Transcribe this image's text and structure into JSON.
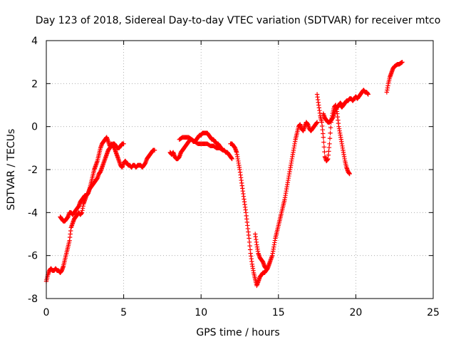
{
  "chart_data": {
    "type": "scatter",
    "title": "Day 123 of 2018, Sidereal Day-to-day VTEC variation (SDTVAR) for receiver mtco",
    "xlabel": "GPS time / hours",
    "ylabel": "SDTVAR / TECUs",
    "xlim": [
      0,
      25
    ],
    "ylim": [
      -8,
      4
    ],
    "xticks": [
      "0",
      "5",
      "10",
      "15",
      "20",
      "25"
    ],
    "yticks": [
      "-8",
      "-6",
      "-4",
      "-2",
      "0",
      "2",
      "4"
    ],
    "grid": true,
    "marker": "+",
    "series": [
      {
        "color": "#ff0000",
        "x": [
          0.0,
          0.1,
          0.2,
          0.3,
          0.4,
          0.5,
          0.6,
          0.7,
          0.8,
          0.9,
          1.0,
          1.1,
          1.2,
          1.3,
          1.4,
          1.5,
          1.6,
          1.7,
          1.8,
          1.9,
          2.0,
          2.1,
          2.2,
          2.3,
          2.4,
          2.5,
          2.6,
          2.7,
          2.8,
          2.9,
          3.0,
          3.1,
          3.2,
          3.3,
          3.4,
          3.5,
          3.6,
          3.7,
          3.8,
          3.9,
          4.0,
          4.1,
          4.2,
          4.3,
          4.4,
          4.5,
          4.6,
          4.7,
          4.8,
          4.9,
          5.0,
          5.1,
          5.2,
          5.3,
          5.4,
          5.5,
          5.6,
          5.7,
          5.8,
          5.9,
          6.0,
          6.1,
          6.2,
          6.3,
          6.4,
          6.5,
          6.6,
          6.7,
          6.8,
          6.9,
          7.0
        ],
        "y": [
          -7.2,
          -6.9,
          -6.7,
          -6.6,
          -6.7,
          -6.7,
          -6.6,
          -6.7,
          -6.7,
          -6.8,
          -6.7,
          -6.5,
          -6.2,
          -5.9,
          -5.6,
          -5.3,
          -4.7,
          -4.5,
          -4.3,
          -4.2,
          -4.1,
          -4.0,
          -4.1,
          -4.0,
          -3.6,
          -3.4,
          -3.2,
          -3.1,
          -2.9,
          -2.6,
          -2.3,
          -2.0,
          -1.8,
          -1.6,
          -1.3,
          -1.0,
          -0.8,
          -0.7,
          -0.6,
          -0.5,
          -0.7,
          -0.9,
          -0.8,
          -0.9,
          -1.0,
          -1.2,
          -1.4,
          -1.6,
          -1.8,
          -1.9,
          -1.7,
          -1.6,
          -1.7,
          -1.8,
          -1.8,
          -1.9,
          -1.8,
          -1.8,
          -1.9,
          -1.8,
          -1.8,
          -1.8,
          -1.9,
          -1.8,
          -1.7,
          -1.5,
          -1.4,
          -1.3,
          -1.2,
          -1.1,
          -1.1
        ]
      },
      {
        "color": "#ff0000",
        "x": [
          0.9,
          1.0,
          1.1,
          1.2,
          1.3,
          1.4,
          1.5,
          1.6,
          1.7,
          1.8,
          1.9,
          2.0,
          2.1,
          2.2,
          2.3,
          2.4,
          2.5,
          2.6,
          2.7,
          2.8,
          2.9,
          3.0,
          3.1,
          3.2,
          3.3,
          3.4,
          3.5,
          3.6,
          3.7,
          3.8,
          3.9,
          4.0,
          4.1,
          4.2,
          4.3,
          4.4,
          4.5,
          4.6,
          4.7,
          4.8,
          4.9,
          5.0
        ],
        "y": [
          -4.2,
          -4.3,
          -4.4,
          -4.4,
          -4.3,
          -4.2,
          -4.0,
          -4.0,
          -4.1,
          -4.0,
          -3.9,
          -3.8,
          -3.7,
          -3.5,
          -3.4,
          -3.3,
          -3.2,
          -3.2,
          -3.1,
          -2.9,
          -2.8,
          -2.7,
          -2.6,
          -2.5,
          -2.4,
          -2.2,
          -2.1,
          -1.9,
          -1.7,
          -1.5,
          -1.3,
          -1.1,
          -1.0,
          -0.9,
          -0.8,
          -0.8,
          -0.9,
          -1.0,
          -1.0,
          -0.9,
          -0.8,
          -0.8
        ]
      },
      {
        "color": "#ff0000",
        "x": [
          8.0,
          8.1,
          8.2,
          8.3,
          8.4,
          8.5,
          8.6,
          8.7,
          8.8,
          8.9,
          9.0,
          9.1,
          9.2,
          9.3,
          9.4,
          9.5,
          9.6,
          9.7,
          9.8,
          9.9,
          10.0,
          10.1,
          10.2,
          10.3,
          10.4,
          10.5,
          10.6,
          10.7,
          10.8,
          10.9,
          11.0,
          11.1,
          11.2,
          11.3,
          11.4,
          11.5,
          11.6,
          11.7,
          11.8,
          11.9,
          12.0
        ],
        "y": [
          -1.2,
          -1.3,
          -1.2,
          -1.4,
          -1.5,
          -1.5,
          -1.4,
          -1.2,
          -1.1,
          -1.0,
          -0.9,
          -0.8,
          -0.7,
          -0.6,
          -0.6,
          -0.7,
          -0.7,
          -0.6,
          -0.5,
          -0.4,
          -0.4,
          -0.3,
          -0.3,
          -0.3,
          -0.3,
          -0.4,
          -0.5,
          -0.6,
          -0.6,
          -0.7,
          -0.8,
          -0.8,
          -0.9,
          -1.0,
          -1.1,
          -1.1,
          -1.2,
          -1.2,
          -1.3,
          -1.4,
          -1.5
        ]
      },
      {
        "color": "#ff0000",
        "x": [
          8.6,
          8.8,
          9.0,
          9.2,
          9.4,
          9.6,
          9.8,
          10.0,
          10.2,
          10.4,
          10.6,
          10.8,
          11.0,
          11.2,
          11.4
        ],
        "y": [
          -0.6,
          -0.5,
          -0.5,
          -0.5,
          -0.6,
          -0.7,
          -0.8,
          -0.8,
          -0.8,
          -0.8,
          -0.9,
          -0.9,
          -1.0,
          -1.0,
          -1.1
        ]
      },
      {
        "color": "#ff0000",
        "x": [
          11.9,
          12.0,
          12.1,
          12.2,
          12.3,
          12.4,
          12.5,
          12.6,
          12.7,
          12.8,
          12.9,
          13.0,
          13.1,
          13.2,
          13.3,
          13.4,
          13.5,
          13.6,
          13.7,
          13.8,
          13.9,
          14.0,
          14.1,
          14.2,
          14.3,
          14.4,
          14.5,
          14.6,
          14.7,
          14.8,
          14.9,
          15.0,
          15.1,
          15.2,
          15.3,
          15.4,
          15.5,
          15.6,
          15.7,
          15.8,
          15.9,
          16.0,
          16.1,
          16.2,
          16.3,
          16.4,
          16.5,
          16.6,
          16.7,
          16.8,
          16.9,
          17.0,
          17.1,
          17.2,
          17.3,
          17.4,
          17.5
        ],
        "y": [
          -0.8,
          -0.8,
          -0.9,
          -1.0,
          -1.2,
          -1.6,
          -2.0,
          -2.5,
          -3.0,
          -3.5,
          -4.0,
          -4.6,
          -5.2,
          -5.9,
          -6.4,
          -6.8,
          -7.1,
          -7.4,
          -7.2,
          -7.0,
          -6.9,
          -6.8,
          -6.8,
          -6.7,
          -6.6,
          -6.4,
          -6.2,
          -6.0,
          -5.6,
          -5.2,
          -4.9,
          -4.6,
          -4.3,
          -4.0,
          -3.7,
          -3.4,
          -3.0,
          -2.6,
          -2.2,
          -1.8,
          -1.4,
          -1.0,
          -0.6,
          -0.3,
          0.0,
          0.1,
          -0.1,
          -0.2,
          0.0,
          0.2,
          0.1,
          -0.1,
          -0.2,
          -0.1,
          0.0,
          0.1,
          0.2
        ]
      },
      {
        "color": "#ff0000",
        "x": [
          13.5,
          13.6,
          13.7,
          13.8,
          13.9,
          14.0,
          14.1,
          14.2
        ],
        "y": [
          -5.0,
          -5.5,
          -5.9,
          -6.1,
          -6.2,
          -6.3,
          -6.5,
          -6.6
        ]
      },
      {
        "color": "#ff0000",
        "x": [
          17.5,
          17.6,
          17.7,
          17.8,
          17.9,
          18.0,
          18.1,
          18.2,
          18.3,
          18.4,
          18.5,
          18.6,
          18.7,
          18.8,
          18.9,
          19.0,
          19.1,
          19.2,
          19.3,
          19.4,
          19.5,
          19.6
        ],
        "y": [
          1.5,
          1.0,
          0.5,
          0.2,
          -0.5,
          -1.4,
          -1.6,
          -1.5,
          -0.8,
          0.2,
          0.6,
          0.9,
          1.0,
          0.6,
          0.0,
          -0.4,
          -0.8,
          -1.2,
          -1.6,
          -1.9,
          -2.1,
          -2.2
        ]
      },
      {
        "color": "#ff0000",
        "x": [
          17.9,
          18.0,
          18.1,
          18.2,
          18.3,
          18.4,
          18.5,
          18.6,
          18.7,
          18.8,
          18.9,
          19.0,
          19.1,
          19.2
        ],
        "y": [
          0.6,
          0.4,
          0.3,
          0.2,
          0.2,
          0.3,
          0.4,
          0.6,
          0.8,
          0.9,
          1.0,
          1.1,
          1.0,
          1.0
        ]
      },
      {
        "color": "#ff0000",
        "x": [
          19.0,
          19.1,
          19.2,
          19.3,
          19.4,
          19.5,
          19.6,
          19.7,
          19.8,
          19.9,
          20.0,
          20.1,
          20.2,
          20.3,
          20.4,
          20.5,
          20.6,
          20.7,
          20.8
        ],
        "y": [
          1.0,
          0.9,
          1.0,
          1.1,
          1.2,
          1.2,
          1.3,
          1.3,
          1.2,
          1.3,
          1.4,
          1.3,
          1.4,
          1.5,
          1.6,
          1.7,
          1.6,
          1.6,
          1.5
        ]
      },
      {
        "color": "#ff0000",
        "x": [
          22.0,
          22.1,
          22.2,
          22.3,
          22.4,
          22.5,
          22.6,
          22.7,
          22.8,
          22.9,
          23.0
        ],
        "y": [
          1.6,
          2.0,
          2.3,
          2.5,
          2.7,
          2.8,
          2.85,
          2.9,
          2.9,
          2.95,
          3.0
        ]
      }
    ]
  }
}
